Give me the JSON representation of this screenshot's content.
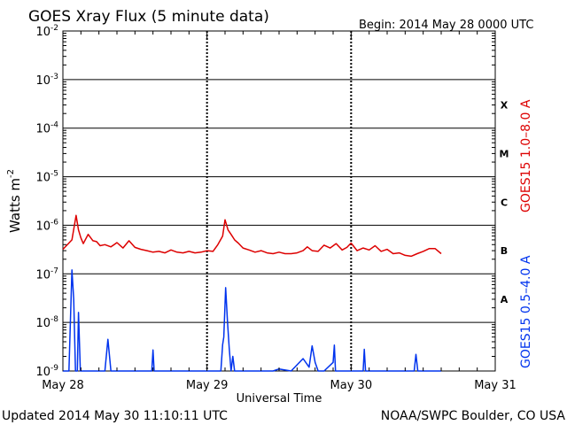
{
  "chart_data": {
    "type": "line",
    "title": "GOES Xray Flux (5 minute data)",
    "begin_label": "Begin:  2014 May 28 0000 UTC",
    "xlabel": "Universal Time",
    "ylabel": "Watts m",
    "ylabel_exponent": "-2",
    "y_scale": "log",
    "ylim": [
      1e-09,
      0.01
    ],
    "xlim_hours": [
      0,
      72
    ],
    "grid": true,
    "y_ticks": [
      {
        "base": "10",
        "exp": "-2",
        "value": 0.01
      },
      {
        "base": "10",
        "exp": "-3",
        "value": 0.001
      },
      {
        "base": "10",
        "exp": "-4",
        "value": 0.0001
      },
      {
        "base": "10",
        "exp": "-5",
        "value": 1e-05
      },
      {
        "base": "10",
        "exp": "-6",
        "value": 1e-06
      },
      {
        "base": "10",
        "exp": "-7",
        "value": 1e-07
      },
      {
        "base": "10",
        "exp": "-8",
        "value": 1e-08
      },
      {
        "base": "10",
        "exp": "-9",
        "value": 1e-09
      }
    ],
    "x_ticks": [
      {
        "label": "May 28",
        "hour": 0
      },
      {
        "label": "May 29",
        "hour": 24
      },
      {
        "label": "May 30",
        "hour": 48
      },
      {
        "label": "May 31",
        "hour": 72
      }
    ],
    "flare_classes": [
      {
        "label": "X",
        "value": 0.0003
      },
      {
        "label": "M",
        "value": 3e-05
      },
      {
        "label": "C",
        "value": 3e-06
      },
      {
        "label": "B",
        "value": 3e-07
      },
      {
        "label": "A",
        "value": 3e-08
      }
    ],
    "series": [
      {
        "name": "GOES15 1.0–8.0 A",
        "color": "#dd0000",
        "x_hours": [
          0,
          1.5,
          2.2,
          2.6,
          3.0,
          3.4,
          4.2,
          5.0,
          5.6,
          6.2,
          7.0,
          8.0,
          9.0,
          10.0,
          11.0,
          12.0,
          13.0,
          14.0,
          15.0,
          16.0,
          17.0,
          18.0,
          19.0,
          20.0,
          21.0,
          22.0,
          23.0,
          24.0,
          25.0,
          25.8,
          26.6,
          27.0,
          27.5,
          28.0,
          28.6,
          29.2,
          30.0,
          31.0,
          32.0,
          33.0,
          34.0,
          35.0,
          36.0,
          37.0,
          38.0,
          39.0,
          40.0,
          40.7,
          41.5,
          42.5,
          43.5,
          44.5,
          45.5,
          46.5,
          47.3,
          48.0,
          49.0,
          50.0,
          51.0,
          52.0,
          53.0,
          54.0,
          55.0,
          56.0,
          57.0,
          58.0,
          59.0,
          60.0,
          61.0,
          62.0,
          63.0
        ],
        "values": [
          3.2e-07,
          5e-07,
          1.6e-06,
          8e-07,
          5.5e-07,
          4.2e-07,
          6.5e-07,
          4.8e-07,
          4.6e-07,
          3.8e-07,
          4e-07,
          3.6e-07,
          4.4e-07,
          3.4e-07,
          4.8e-07,
          3.5e-07,
          3.2e-07,
          3e-07,
          2.8e-07,
          2.9e-07,
          2.7e-07,
          3.1e-07,
          2.8e-07,
          2.7e-07,
          2.9e-07,
          2.7e-07,
          2.8e-07,
          3e-07,
          2.9e-07,
          4e-07,
          6e-07,
          1.3e-06,
          8e-07,
          6.5e-07,
          5e-07,
          4.3e-07,
          3.4e-07,
          3.1e-07,
          2.8e-07,
          3e-07,
          2.7e-07,
          2.6e-07,
          2.8e-07,
          2.6e-07,
          2.6e-07,
          2.7e-07,
          3e-07,
          3.6e-07,
          3e-07,
          2.9e-07,
          3.9e-07,
          3.4e-07,
          4.2e-07,
          3.1e-07,
          3.5e-07,
          4.3e-07,
          3e-07,
          3.4e-07,
          3.1e-07,
          3.8e-07,
          2.9e-07,
          3.2e-07,
          2.6e-07,
          2.7e-07,
          2.4e-07,
          2.3e-07,
          2.6e-07,
          2.9e-07,
          3.3e-07,
          3.3e-07,
          2.6e-07
        ]
      },
      {
        "name": "GOES15 0.5–4.0 A",
        "color": "#0033ee",
        "x_hours": [
          0,
          1.0,
          1.5,
          1.8,
          2.1,
          2.4,
          2.6,
          2.9,
          3.1,
          3.4,
          3.7,
          4.0,
          4.3,
          4.8,
          5.0,
          5.5,
          6.0,
          6.5,
          7.0,
          7.5,
          8.0,
          8.5,
          9.0,
          14.8,
          15.0,
          15.2,
          15.4,
          20.0,
          24.0,
          26.3,
          26.6,
          26.8,
          27.1,
          27.4,
          27.7,
          28.0,
          28.3,
          28.6,
          29.0,
          29.5,
          30.0,
          35.0,
          36.0,
          38.0,
          40.0,
          41.0,
          41.5,
          42.0,
          42.5,
          43.5,
          45.0,
          45.2,
          45.4,
          47.0,
          48.0,
          50.0,
          50.2,
          50.4,
          53.0,
          55.0,
          58.5,
          58.8,
          59.1,
          63.0
        ],
        "values": [
          1e-09,
          1e-09,
          1.2e-07,
          3e-08,
          1e-09,
          1e-09,
          1.6e-08,
          1e-09,
          1e-09,
          1e-09,
          1e-09,
          1e-09,
          1e-09,
          1e-09,
          1e-09,
          1e-09,
          1e-09,
          1e-09,
          1e-09,
          4.5e-09,
          1e-09,
          1e-09,
          1e-09,
          1e-09,
          2.7e-09,
          1e-09,
          1e-09,
          1e-09,
          1e-09,
          1e-09,
          3.5e-09,
          5e-09,
          5.2e-08,
          1.1e-08,
          3e-09,
          1e-09,
          2e-09,
          1e-09,
          1e-09,
          1e-09,
          1e-09,
          1e-09,
          1.1e-09,
          1e-09,
          1.8e-09,
          1.2e-09,
          3.3e-09,
          1.5e-09,
          1e-09,
          1e-09,
          1.5e-09,
          3.4e-09,
          1e-09,
          1e-09,
          1e-09,
          1e-09,
          2.8e-09,
          1e-09,
          1e-09,
          1e-09,
          1e-09,
          2.2e-09,
          1e-09,
          1e-09
        ]
      }
    ]
  },
  "footer": {
    "updated": "Updated 2014 May 30 11:10:11 UTC",
    "credit": "NOAA/SWPC Boulder, CO USA"
  }
}
